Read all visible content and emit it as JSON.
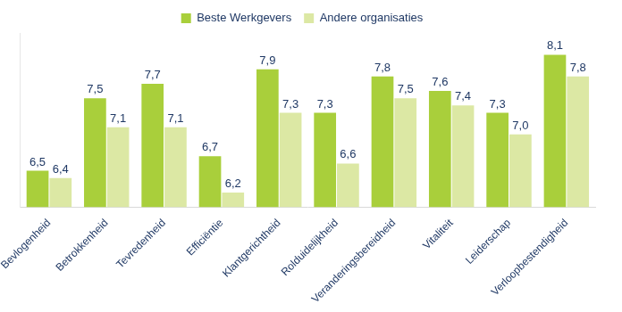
{
  "chart_data": {
    "type": "bar",
    "categories": [
      "Bevlogenheid",
      "Betrokkenheid",
      "Tevredenheid",
      "Efficiëntie",
      "Klantgerichtheid",
      "Rolduidelijkheid",
      "Veranderingsbereidheid",
      "Vitaliteit",
      "Leiderschap",
      "Verloopbestendigheid"
    ],
    "series": [
      {
        "name": "Beste Werkgevers",
        "color": "#a9cf3b",
        "values": [
          6.5,
          7.5,
          7.7,
          6.7,
          7.9,
          7.3,
          7.8,
          7.6,
          7.3,
          8.1
        ],
        "value_labels": [
          "6,5",
          "7,5",
          "7,7",
          "6,7",
          "7,9",
          "7,3",
          "7,8",
          "7,6",
          "7,3",
          "8,1"
        ]
      },
      {
        "name": "Andere organisaties",
        "color": "#dce8a4",
        "values": [
          6.4,
          7.1,
          7.1,
          6.2,
          7.3,
          6.6,
          7.5,
          7.4,
          7.0,
          7.8
        ],
        "value_labels": [
          "6,4",
          "7,1",
          "7,1",
          "6,2",
          "7,3",
          "6,6",
          "7,5",
          "7,4",
          "7,0",
          "7,8"
        ]
      }
    ],
    "ylim": [
      6,
      8.4
    ],
    "grid": false,
    "legend": "top",
    "data_labels": true,
    "tick_labels": "x"
  }
}
